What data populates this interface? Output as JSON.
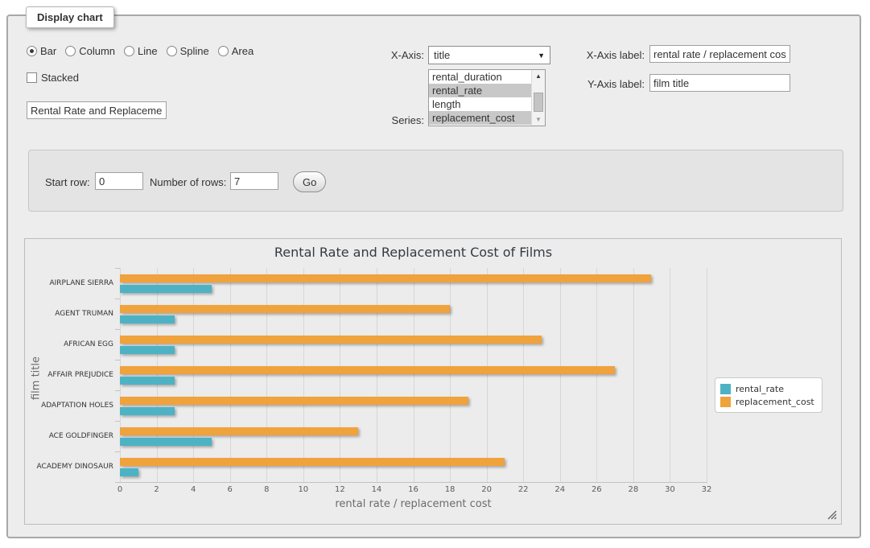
{
  "fieldset_legend": "Display chart",
  "controls": {
    "chart_types": [
      "Bar",
      "Column",
      "Line",
      "Spline",
      "Area"
    ],
    "selected_chart_type": "Bar",
    "stacked_label": "Stacked",
    "stacked_checked": false,
    "chart_title_input": "Rental Rate and Replacement Cost of Films",
    "xaxis_select_label": "X-Axis:",
    "xaxis_selected": "title",
    "series_select_label": "Series:",
    "series_options": [
      "rental_duration",
      "rental_rate",
      "length",
      "replacement_cost"
    ],
    "series_selected": [
      "rental_rate",
      "replacement_cost"
    ],
    "xaxis_label_field": "X-Axis label:",
    "xaxis_label_value": "rental rate / replacement cost",
    "yaxis_label_field": "Y-Axis label:",
    "yaxis_label_value": "film title"
  },
  "row_controls": {
    "start_row_label": "Start row:",
    "start_row_value": "0",
    "num_rows_label": "Number of rows:",
    "num_rows_value": "7",
    "go_label": "Go"
  },
  "chart_data": {
    "type": "bar",
    "orientation": "horizontal",
    "title": "Rental Rate and Replacement Cost of Films",
    "categories": [
      "AIRPLANE SIERRA",
      "AGENT TRUMAN",
      "AFRICAN EGG",
      "AFFAIR PREJUDICE",
      "ADAPTATION HOLES",
      "ACE GOLDFINGER",
      "ACADEMY DINOSAUR"
    ],
    "series": [
      {
        "name": "rental_rate",
        "color": "#4db3c4",
        "values": [
          4.99,
          2.99,
          2.99,
          2.99,
          2.99,
          4.99,
          0.99
        ]
      },
      {
        "name": "replacement_cost",
        "color": "#f0a23c",
        "values": [
          28.99,
          17.99,
          22.99,
          26.99,
          18.99,
          12.99,
          20.99
        ]
      }
    ],
    "xlabel": "rental rate / replacement cost",
    "ylabel": "film title",
    "xlim": [
      0,
      32
    ],
    "xtick_step": 2,
    "grid": true,
    "legend_position": "right"
  }
}
